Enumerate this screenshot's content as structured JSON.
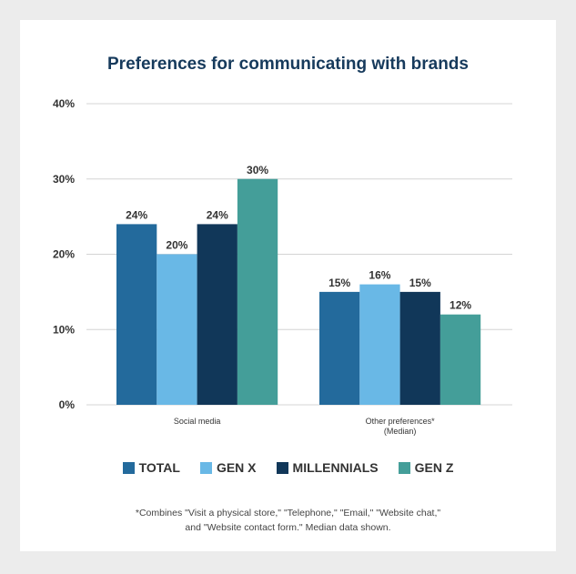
{
  "chart_data": {
    "type": "bar",
    "title": "Preferences for communicating with brands",
    "categories": [
      "Social media",
      "Other preferences*\n(Median)"
    ],
    "series": [
      {
        "name": "TOTAL",
        "color": "#236a9c",
        "values": [
          24,
          15
        ]
      },
      {
        "name": "GEN X",
        "color": "#69b8e6",
        "values": [
          20,
          16
        ]
      },
      {
        "name": "MILLENNIALS",
        "color": "#113759",
        "values": [
          24,
          15
        ]
      },
      {
        "name": "GEN Z",
        "color": "#449e99",
        "values": [
          30,
          12
        ]
      }
    ],
    "data_labels": [
      [
        "24%",
        "15%"
      ],
      [
        "20%",
        "16%"
      ],
      [
        "24%",
        "15%"
      ],
      [
        "30%",
        "12%"
      ]
    ],
    "yticks": [
      "0%",
      "10%",
      "20%",
      "30%",
      "40%"
    ],
    "ylim": [
      0,
      40
    ],
    "grid": true,
    "legend": "bottom",
    "footnote_lines": [
      "*Combines \"Visit a physical store,\" \"Telephone,\" \"Email,\" \"Website chat,\"",
      "and \"Website contact form.\" Median data shown."
    ]
  }
}
